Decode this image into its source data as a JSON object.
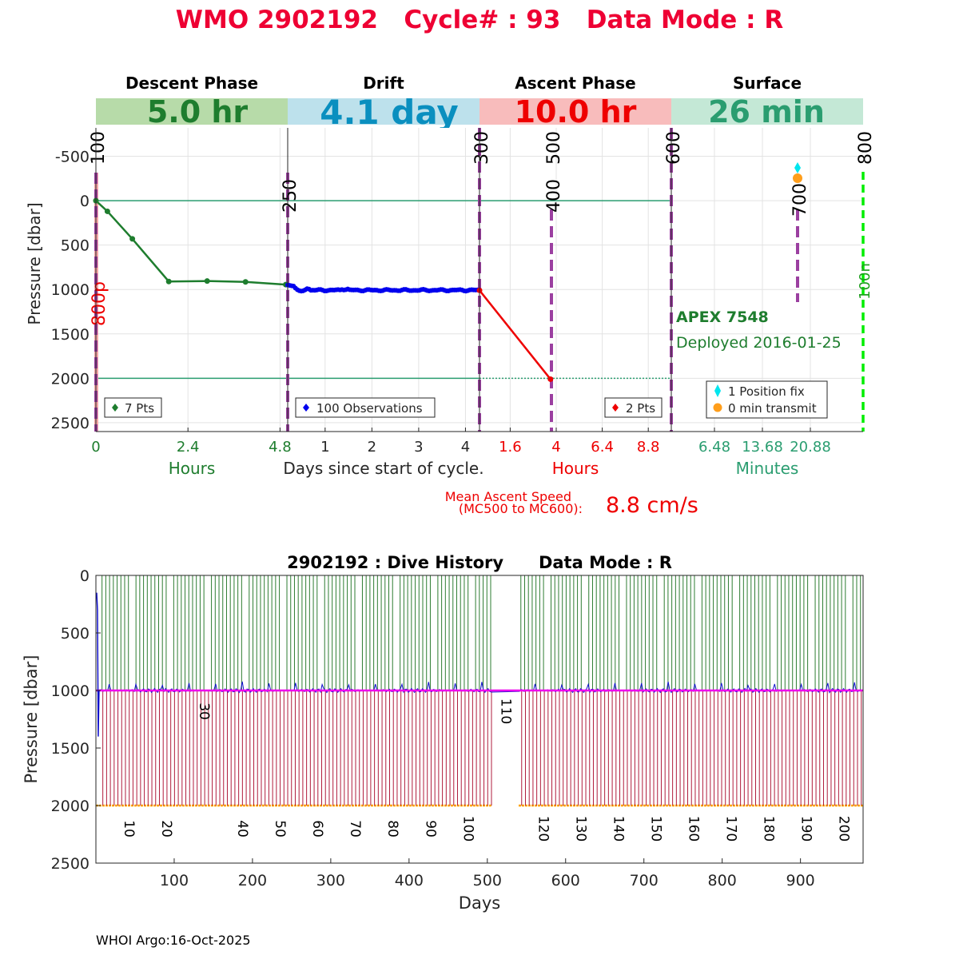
{
  "page_title": "WMO 2902192   Cycle# : 93   Data Mode : R",
  "colors": {
    "title_red": "#ee0033",
    "descent_green": "#1e7d2e",
    "drift_blue": "#0000ee",
    "ascent_red": "#ee0000",
    "surface_teal": "#2a9d70",
    "marker_purple": "#9b3fa0",
    "history_green": "#2e7d32",
    "history_red": "#b01c3c",
    "history_orange": "#ffa500",
    "history_magenta": "#ee00ee",
    "fix_cyan": "#00e5ee",
    "transmit_orange": "#ff9e1b"
  },
  "phases": [
    {
      "name": "Descent Phase",
      "duration": "5.0 hr",
      "bg": "#b7dba9",
      "fg": "#1e7d2e"
    },
    {
      "name": "Drift",
      "duration": "4.1 day",
      "bg": "#bde1ec",
      "fg": "#0a8fbf"
    },
    {
      "name": "Ascent Phase",
      "duration": "10.0 hr",
      "bg": "#f8bcbc",
      "fg": "#ee0000"
    },
    {
      "name": "Surface",
      "duration": "26 min",
      "bg": "#c4e8d6",
      "fg": "#2a9d70"
    }
  ],
  "ylabel": "Pressure [dbar]",
  "cycle_chart": {
    "type": "line",
    "y_ticks": [
      "-500",
      "0",
      "500",
      "1000",
      "1500",
      "2000",
      "2500"
    ],
    "y_tick_values": [
      -500,
      0,
      500,
      1000,
      1500,
      2000,
      2500
    ],
    "ylim": [
      -820,
      2600
    ],
    "reference_lines": [
      0,
      2000
    ],
    "descent": {
      "x_ticks": [
        "0",
        "2.4",
        "4.8"
      ],
      "x_tick_values": [
        0,
        2.4,
        4.8
      ],
      "xlim": [
        0,
        5
      ],
      "xlabel": "Hours",
      "x": [
        0,
        0.3,
        0.95,
        1.9,
        2.9,
        3.9,
        4.95
      ],
      "y": [
        0,
        120,
        430,
        910,
        905,
        915,
        945
      ],
      "legend": "7 Pts"
    },
    "drift": {
      "x_ticks": [
        "1",
        "2",
        "3",
        "4"
      ],
      "x_tick_values": [
        1,
        2,
        3,
        4
      ],
      "xlim": [
        0.2,
        4.3
      ],
      "xlabel": "Days since start of cycle.",
      "legend": "100 Observations"
    },
    "ascent": {
      "x_ticks": [
        "1.6",
        "4",
        "6.4",
        "8.8"
      ],
      "x_tick_values": [
        1.6,
        4,
        6.4,
        8.8
      ],
      "xlim": [
        0,
        10
      ],
      "xlabel": "Hours",
      "x": [
        0,
        3.7
      ],
      "y": [
        1010,
        2010
      ],
      "legend": "2 Pts"
    },
    "surface": {
      "x_ticks": [
        "6.48",
        "13.68",
        "20.88"
      ],
      "x_tick_values": [
        6.48,
        13.68,
        20.88
      ],
      "xlim": [
        0,
        28.8
      ],
      "xlabel": "Minutes",
      "legend_fix": "1 Position fix",
      "legend_transmit": "0 min transmit"
    },
    "mission_codes": [
      "100",
      "250",
      "300",
      "400",
      "500",
      "600",
      "700",
      "800"
    ],
    "marker_800p": "800p",
    "marker_100n": "100n",
    "float_model": "APEX 7548",
    "deployed": "Deployed 2016-01-25"
  },
  "ascent_speed": {
    "label_line1": "Mean Ascent Speed",
    "label_line2": "(MC500 to MC600):",
    "value": "8.8 cm/s"
  },
  "history_chart": {
    "type": "bar",
    "title": "2902192 : Dive History      Data Mode : R",
    "xlabel": "Days",
    "ylabel": "Pressure [dbar]",
    "x_ticks": [
      "100",
      "200",
      "300",
      "400",
      "500",
      "600",
      "700",
      "800",
      "900"
    ],
    "x_tick_values": [
      100,
      200,
      300,
      400,
      500,
      600,
      700,
      800,
      900
    ],
    "y_ticks": [
      "0",
      "500",
      "1000",
      "1500",
      "2000",
      "2500"
    ],
    "y_tick_values": [
      0,
      500,
      1000,
      1500,
      2000,
      2500
    ],
    "xlim": [
      0,
      980
    ],
    "ylim": [
      0,
      2500
    ],
    "cycles_total": 203,
    "cycle_interval_days": 4.82,
    "park_pressure": 1000,
    "profile_pressure": 2000,
    "gap_days": [
      505,
      540
    ],
    "cycle_labels_low": [
      "10",
      "20",
      "40",
      "50",
      "60",
      "70",
      "80",
      "90",
      "100",
      "120",
      "130",
      "140",
      "150",
      "160",
      "170",
      "180",
      "190",
      "200"
    ],
    "cycle_label_days": [
      43,
      91,
      188,
      236,
      284,
      332,
      380,
      428,
      476,
      572,
      620,
      668,
      716,
      764,
      812,
      860,
      908,
      956
    ],
    "cycle_labels_mid": [
      "30",
      "110"
    ],
    "cycle_label_mid_days": [
      139,
      524
    ]
  },
  "footer": "WHOI Argo:16-Oct-2025"
}
